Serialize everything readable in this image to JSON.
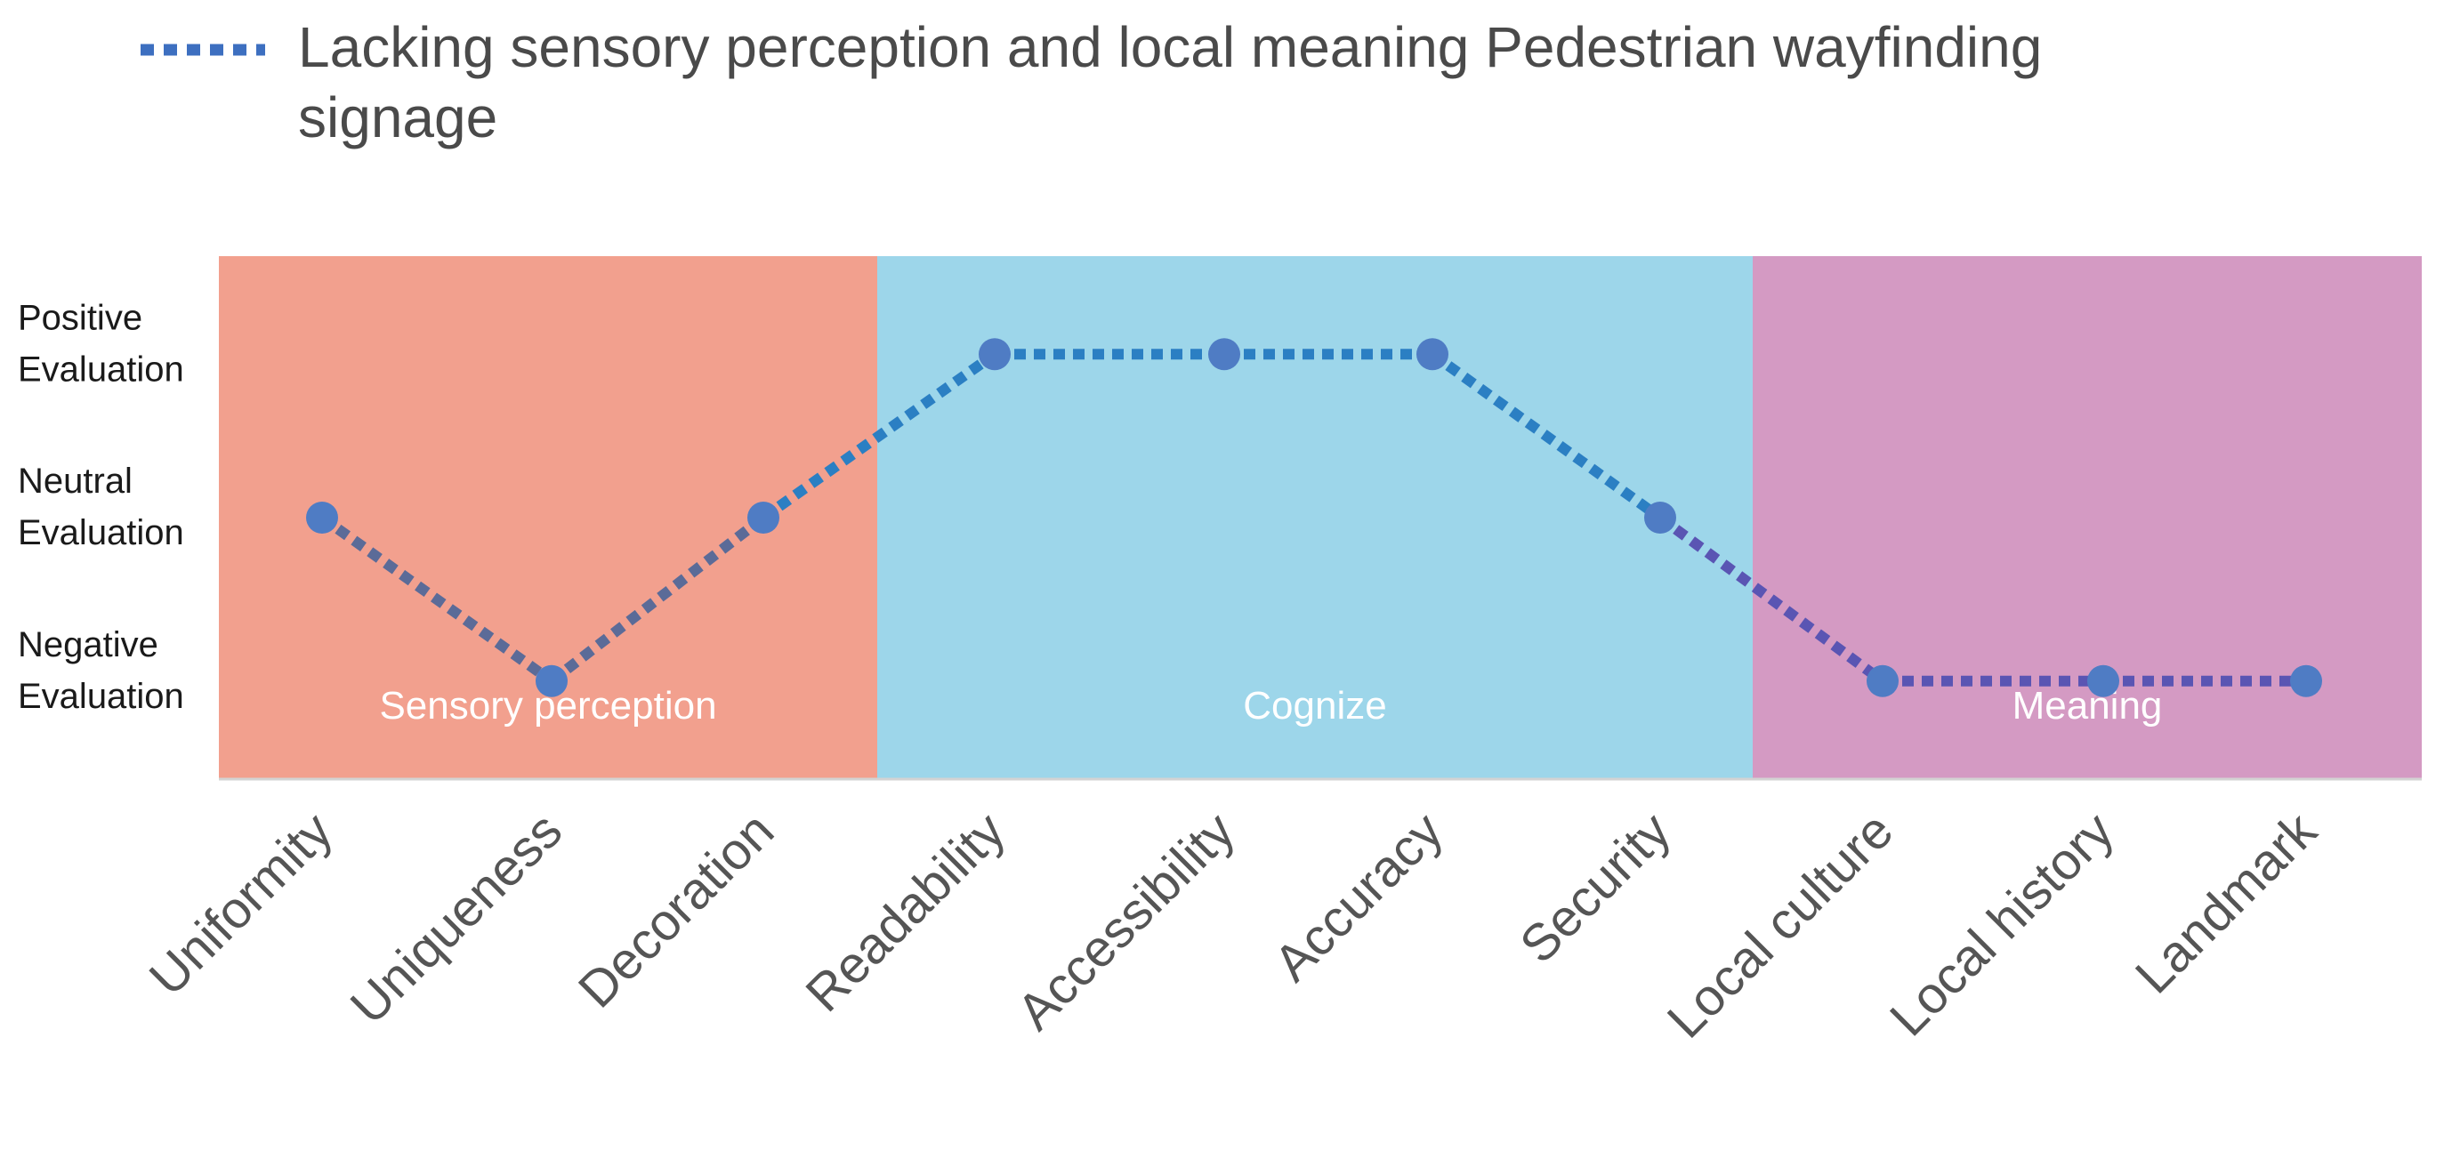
{
  "chart_data": {
    "type": "line",
    "legend": {
      "label": "Lacking sensory perception and local meaning Pedestrian wayfinding",
      "label_continued": "signage",
      "position": "top"
    },
    "y_axis": {
      "levels": [
        {
          "value": 1,
          "line1": "Negative",
          "line2": "Evaluation"
        },
        {
          "value": 2,
          "line1": "Neutral",
          "line2": "Evaluation"
        },
        {
          "value": 3,
          "line1": "Positive",
          "line2": "Evaluation"
        }
      ],
      "ylim": [
        0.4,
        3.6
      ]
    },
    "categories": [
      "Uniformity",
      "Uniqueness",
      "Decoration",
      "Readability",
      "Accessibility",
      "Accuracy",
      "Security",
      "Local culture",
      "Local history",
      "Landmark"
    ],
    "series": [
      {
        "name": "Lacking sensory perception and local meaning Pedestrian wayfinding signage",
        "values": [
          2,
          1,
          2,
          3,
          3,
          3,
          2,
          1,
          1,
          1
        ],
        "marker_color": "#4f7cc4"
      }
    ],
    "bands": [
      {
        "label": "Sensory perception",
        "color": "#f2a08e",
        "line_color": "#5b6b98",
        "start_index": 0,
        "end_index": 2
      },
      {
        "label": "Cognize",
        "color": "#9dd6ea",
        "line_color": "#2b7fc3",
        "start_index": 3,
        "end_index": 6
      },
      {
        "label": "Meaning",
        "color": "#d49ac3",
        "line_color": "#5a55b3",
        "start_index": 7,
        "end_index": 9
      }
    ]
  }
}
